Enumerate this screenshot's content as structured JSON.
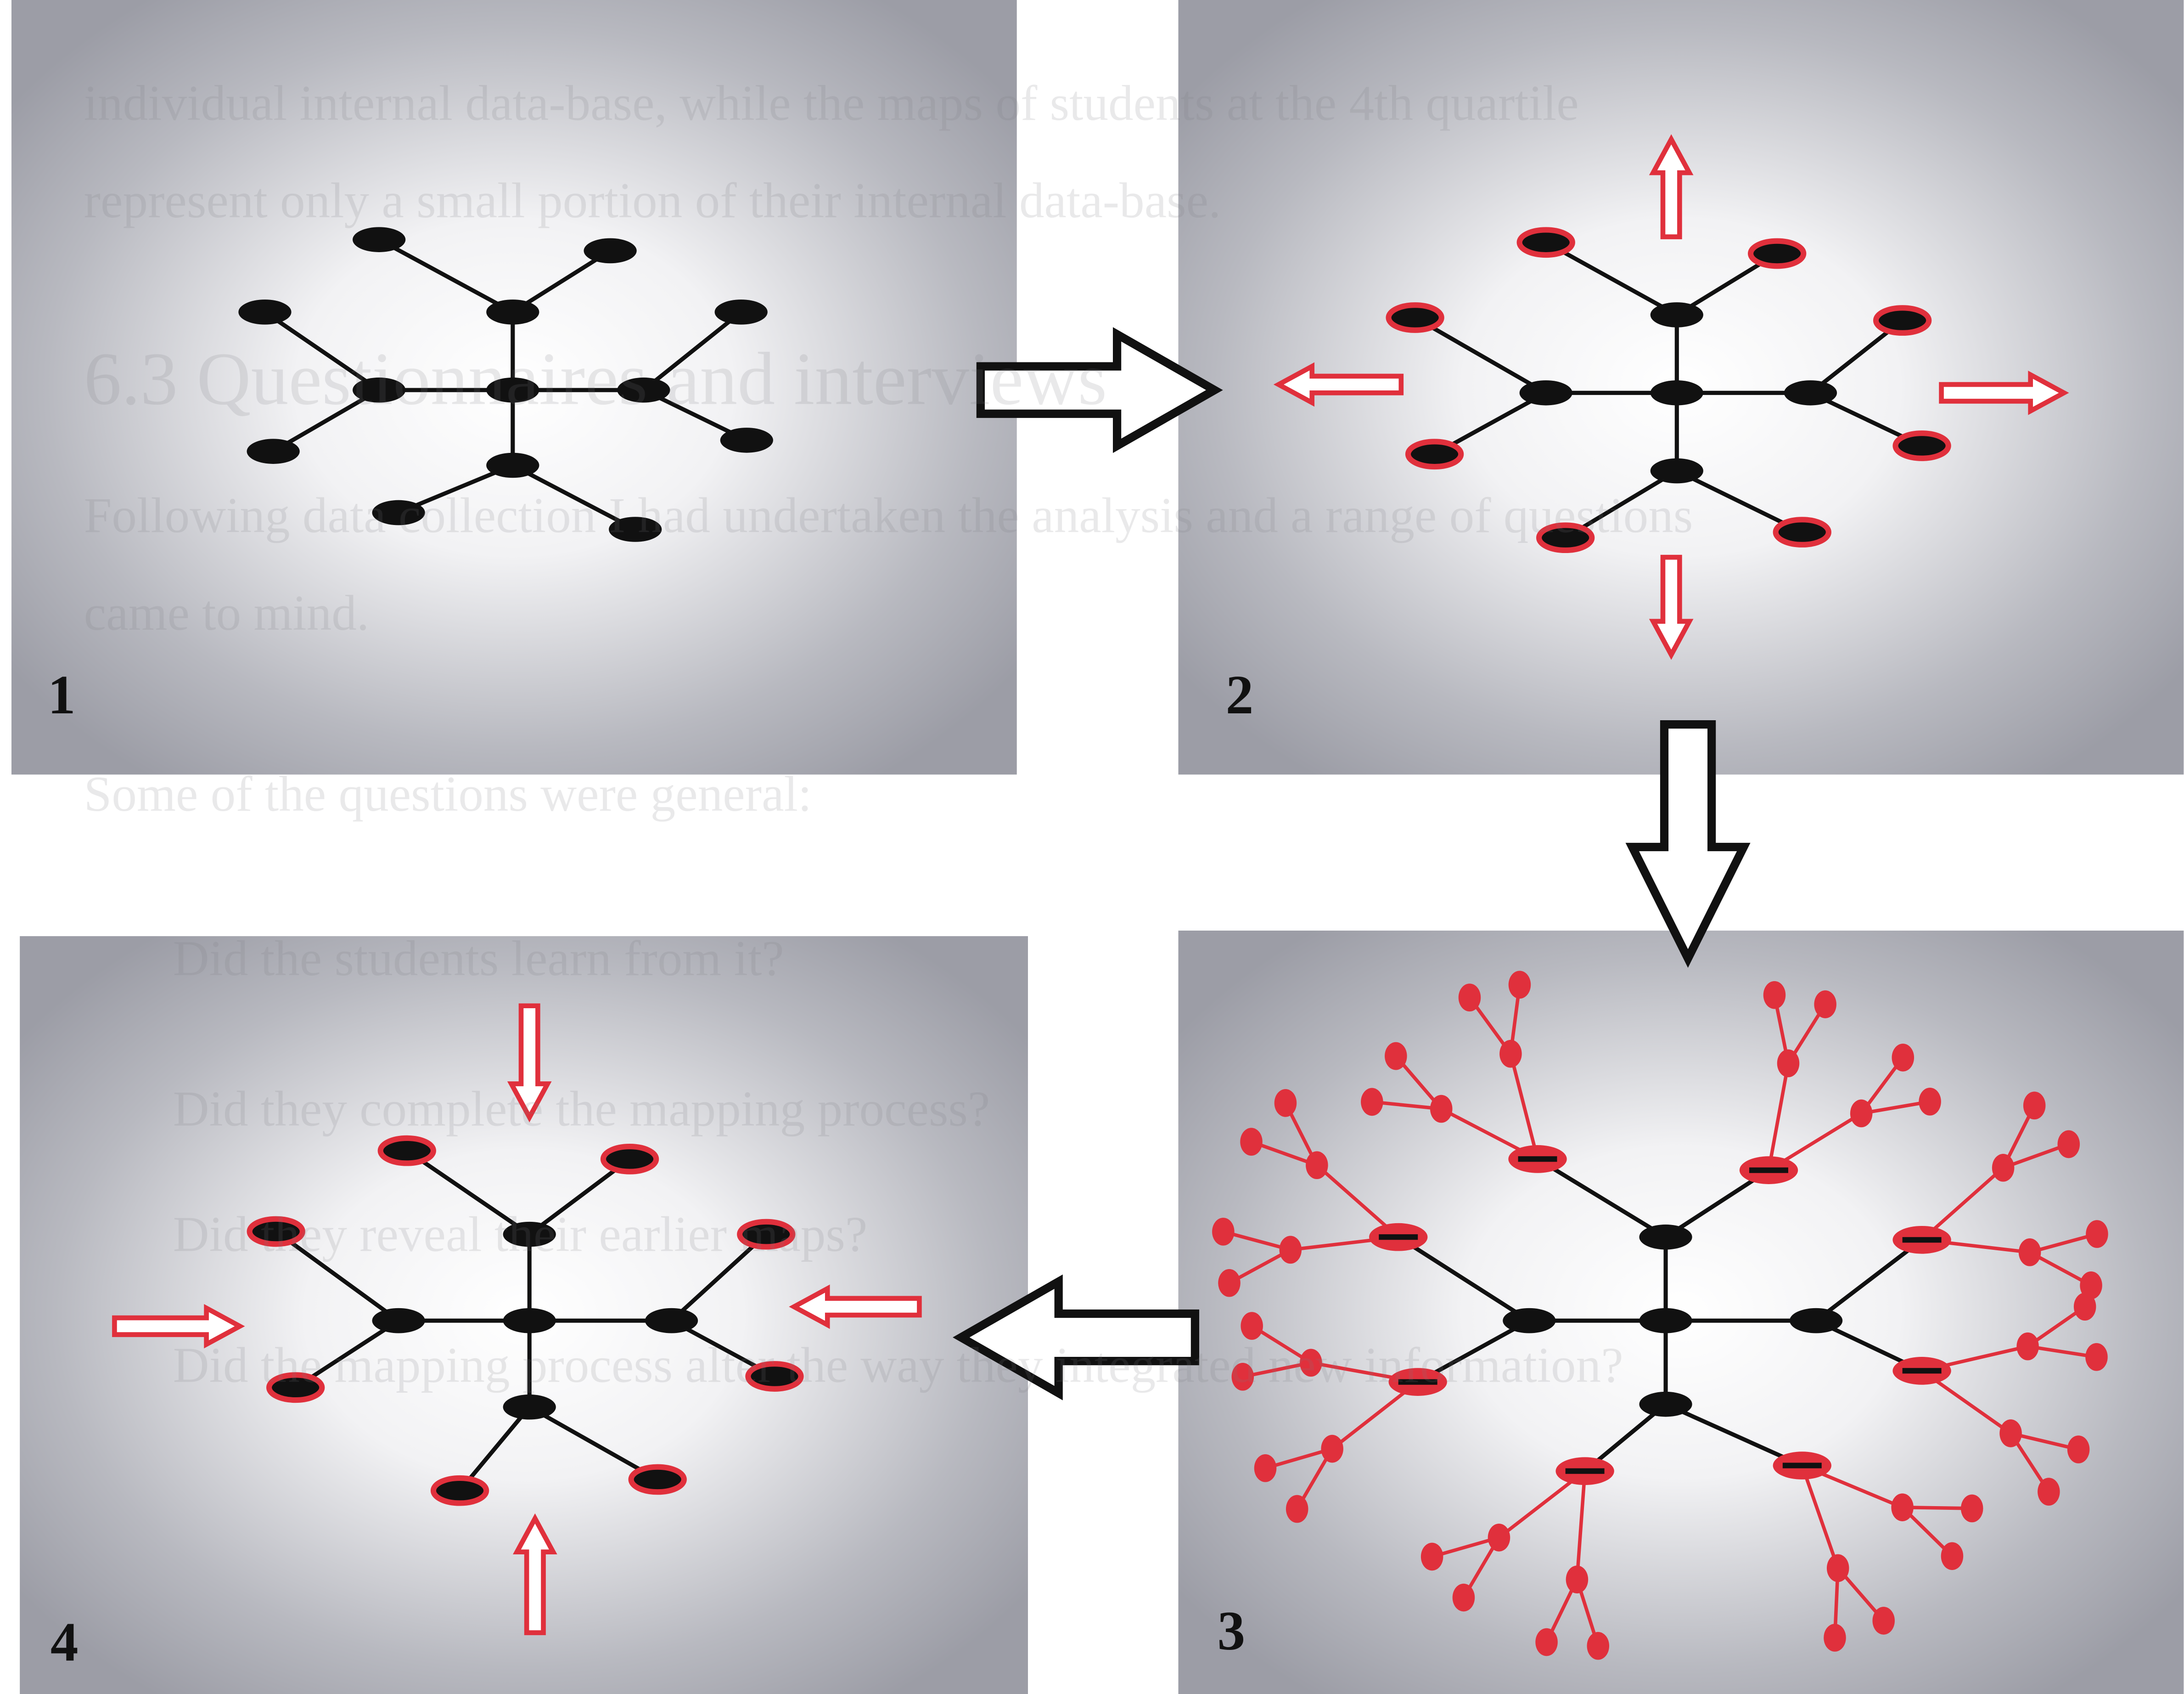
{
  "panels": [
    {
      "label": "1"
    },
    {
      "label": "2"
    },
    {
      "label": "3"
    },
    {
      "label": "4"
    }
  ],
  "background_text": [
    "individual internal data-base, while the maps of students at the 4th quartile",
    "represent only a small portion of their internal data-base.",
    "6.3 Questionnaires and interviews",
    "Following data collection I had undertaken the analysis and a range of questions",
    "came to mind.",
    "Some of the questions were general:",
    "Did the students learn from it?",
    "Did they complete the mapping process?",
    "Did they reveal their earlier maps?",
    "Did the mapping process alter the way they integrated new information?"
  ]
}
